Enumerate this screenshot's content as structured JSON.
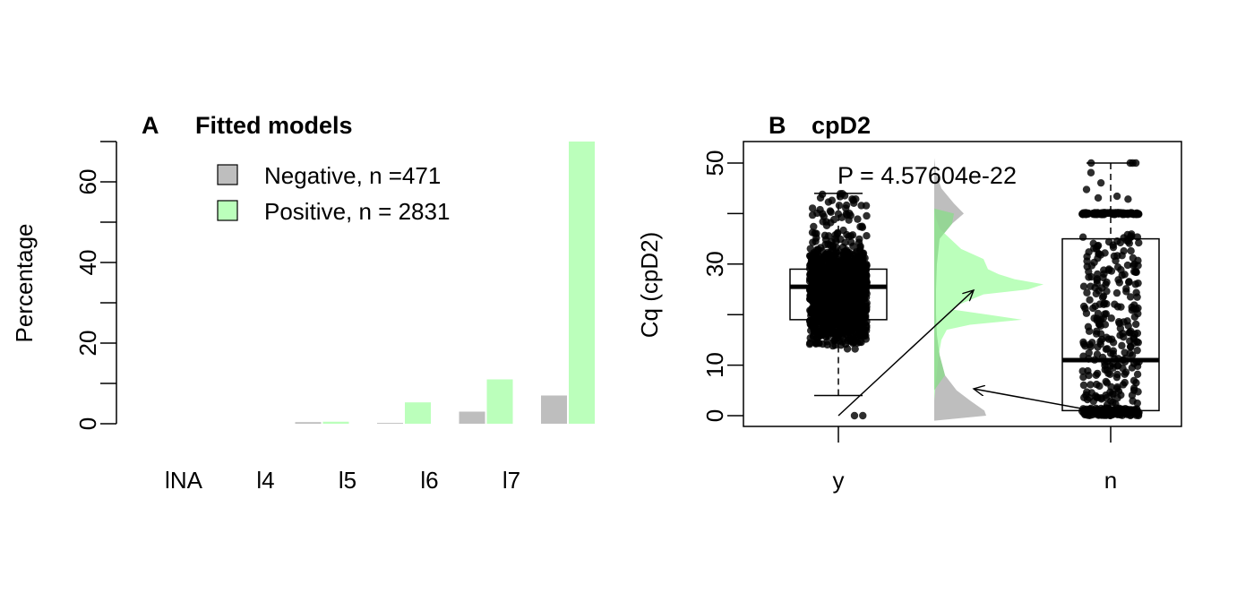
{
  "chart_data": [
    {
      "panel_letter": "A",
      "title": "Fitted models",
      "type": "bar",
      "ylabel": "Percentage",
      "xlabel": "",
      "ylim": [
        0,
        70
      ],
      "yticks": [
        0,
        20,
        40,
        60
      ],
      "categories": [
        "lNA",
        "l4",
        "l5",
        "l6",
        "l7"
      ],
      "grid": false,
      "legend_position": "top-left",
      "series": [
        {
          "name": "Negative, n =471",
          "color": "#bebebe",
          "values": [
            0,
            0.4,
            0.2,
            3.0,
            7.0
          ]
        },
        {
          "name": "Positive, n = 2831",
          "color": "#bbffbb",
          "values": [
            0,
            0.5,
            5.3,
            11.0,
            70.0
          ]
        }
      ]
    },
    {
      "panel_letter": "B",
      "title": "cpD2",
      "type": "boxplot",
      "ylabel": "Cq (cpD2)",
      "xlabel": "",
      "ylim": [
        0,
        50
      ],
      "yticks": [
        0,
        10,
        30,
        50
      ],
      "categories": [
        "y",
        "n"
      ],
      "annotation": "P = 4.57604e-22",
      "grid": false,
      "boxes": [
        {
          "group": "y",
          "whisker_low": 4,
          "q1": 19,
          "median": 25.5,
          "q3": 29,
          "whisker_high": 44,
          "color": "#000000"
        },
        {
          "group": "n",
          "whisker_low": 1,
          "q1": 1,
          "median": 11,
          "q3": 35,
          "whisker_high": 50,
          "color": "#000000"
        }
      ],
      "density": [
        {
          "group": "y",
          "color": "#bbffbb",
          "peaks": [
            26,
            19,
            31
          ]
        },
        {
          "group": "n",
          "color": "#bebebe",
          "peaks": [
            3,
            40
          ]
        }
      ]
    }
  ]
}
